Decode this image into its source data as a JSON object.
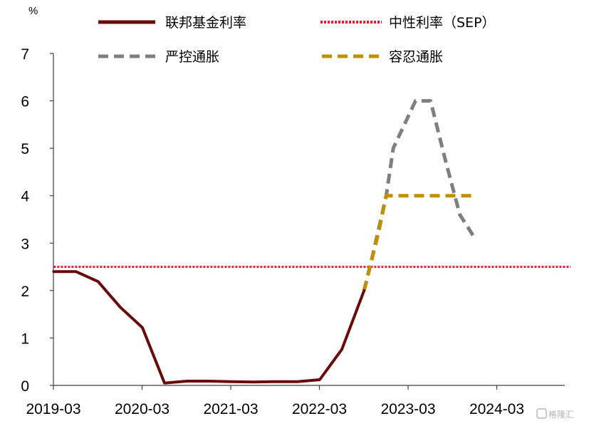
{
  "chart_data": {
    "type": "line",
    "unit_label": "%",
    "ylim": [
      0,
      7
    ],
    "yticks": [
      "0",
      "1",
      "2",
      "3",
      "4",
      "5",
      "6",
      "7"
    ],
    "x_start_year": 2019,
    "x_end_year": 2025,
    "xticks": [
      "2019-03",
      "2020-03",
      "2021-03",
      "2022-03",
      "2023-03",
      "2024-03"
    ],
    "series": [
      {
        "name": "联邦基金利率",
        "color": "#6b0a0a",
        "style": "solid",
        "points": [
          [
            2019.17,
            2.4
          ],
          [
            2019.42,
            2.4
          ],
          [
            2019.67,
            2.19
          ],
          [
            2019.92,
            1.65
          ],
          [
            2020.17,
            1.22
          ],
          [
            2020.42,
            0.05
          ],
          [
            2020.67,
            0.09
          ],
          [
            2020.92,
            0.09
          ],
          [
            2021.17,
            0.08
          ],
          [
            2021.42,
            0.07
          ],
          [
            2021.67,
            0.08
          ],
          [
            2021.92,
            0.08
          ],
          [
            2022.17,
            0.12
          ],
          [
            2022.42,
            0.76
          ],
          [
            2022.67,
            2.0
          ]
        ]
      },
      {
        "name": "中性利率（SEP）",
        "color": "#e8192c",
        "style": "dotted",
        "points": [
          [
            2019.17,
            2.5
          ],
          [
            2025.0,
            2.5
          ]
        ]
      },
      {
        "name": "严控通胀",
        "color": "#7f7f7f",
        "style": "dashed",
        "points": [
          [
            2022.67,
            2.0
          ],
          [
            2022.75,
            2.6
          ],
          [
            2022.92,
            4.0
          ],
          [
            2023.0,
            5.0
          ],
          [
            2023.25,
            6.0
          ],
          [
            2023.42,
            6.0
          ],
          [
            2023.58,
            4.8
          ],
          [
            2023.75,
            3.6
          ],
          [
            2023.92,
            3.1
          ]
        ]
      },
      {
        "name": "容忍通胀",
        "color": "#bf9000",
        "style": "dashed",
        "points": [
          [
            2022.67,
            2.0
          ],
          [
            2022.75,
            2.6
          ],
          [
            2022.83,
            3.2
          ],
          [
            2022.92,
            4.0
          ],
          [
            2023.17,
            4.0
          ],
          [
            2023.42,
            4.0
          ],
          [
            2023.67,
            4.0
          ],
          [
            2023.92,
            4.0
          ]
        ]
      }
    ]
  },
  "watermark": "格隆汇"
}
